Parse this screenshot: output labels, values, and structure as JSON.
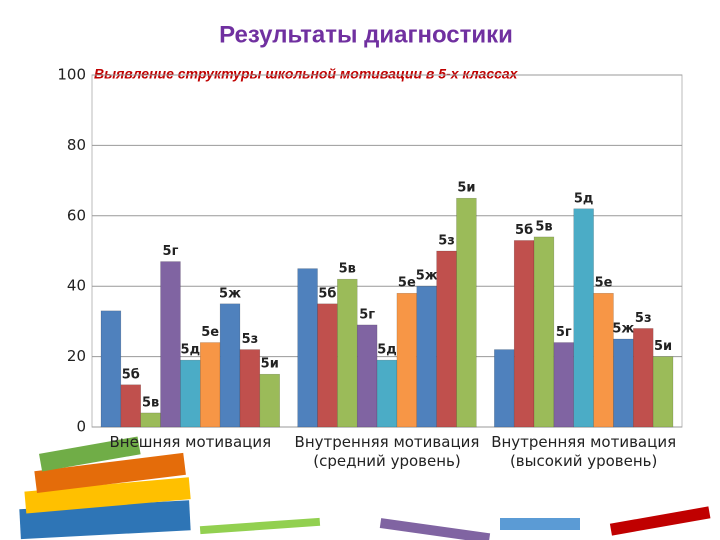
{
  "chart_data": {
    "type": "bar",
    "title": "Результаты диагностики",
    "subtitle": "Выявление структуры школьной мотивации в 5-х классах",
    "categories": [
      "Внешняя мотивация",
      "Внутренняя мотивация\n(средний уровень)",
      "Внутренняя мотивация\n(высокий уровень)"
    ],
    "series": [
      {
        "name": null,
        "color": "#4f81bd",
        "values": [
          33,
          45,
          22
        ]
      },
      {
        "name": "5б",
        "color": "#c0504d",
        "values": [
          12,
          35,
          53
        ]
      },
      {
        "name": "5в",
        "color": "#9bbb59",
        "values": [
          4,
          42,
          54
        ]
      },
      {
        "name": "5г",
        "color": "#8064a2",
        "values": [
          47,
          29,
          24
        ]
      },
      {
        "name": "5д",
        "color": "#4bacc6",
        "values": [
          19,
          19,
          62
        ]
      },
      {
        "name": "5е",
        "color": "#f79646",
        "values": [
          24,
          38,
          38
        ]
      },
      {
        "name": "5ж",
        "color": "#4f81bd",
        "values": [
          35,
          40,
          25
        ]
      },
      {
        "name": "5з",
        "color": "#c0504d",
        "values": [
          22,
          50,
          28
        ]
      },
      {
        "name": "5и",
        "color": "#9bbb59",
        "values": [
          15,
          65,
          20
        ]
      }
    ],
    "ylim": [
      0,
      100
    ],
    "yticks": [
      0,
      20,
      40,
      60,
      80,
      100
    ],
    "grid": true
  }
}
